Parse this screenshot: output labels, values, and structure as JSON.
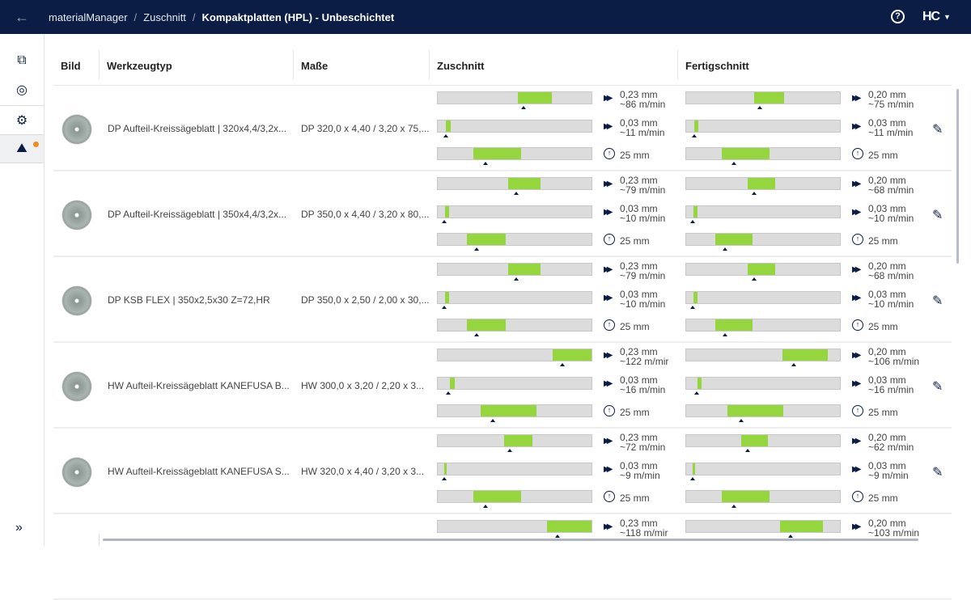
{
  "header": {
    "breadcrumb": [
      "materialManager",
      "Zuschnitt",
      "Kompaktplatten (HPL) - Unbeschichtet"
    ],
    "separator": "/",
    "help_icon": "?",
    "logo": "HC",
    "brand_color": "#0b1c45",
    "accent_color": "#95d63f",
    "notification_color": "#f28c1c"
  },
  "sidebar": {
    "items": [
      "monitor-stack-icon",
      "material-roll-icon",
      "gear-icon",
      "saw-machine-icon"
    ],
    "active_index": 3,
    "expand_icon": "»"
  },
  "table": {
    "columns": [
      "Bild",
      "Werkzeugtyp",
      "Maße",
      "Zuschnitt",
      "Fertigschnitt"
    ],
    "rows": [
      {
        "type": "DP Aufteil-Kreissägeblatt | 320x4,4/3,2x...",
        "dims": "DP 320,0 x 4,40 / 3,20 x 75,...",
        "zuschnitt": {
          "feed": {
            "range": [
              0.52,
              0.74
            ],
            "marker": 0.56,
            "l1": "0,23 mm",
            "l2": "~86 m/min"
          },
          "feed2": {
            "range": [
              0.05,
              0.085
            ],
            "marker": 0.05,
            "l1": "0,03 mm",
            "l2": "~11 m/min"
          },
          "overhang": {
            "range": [
              0.23,
              0.54
            ],
            "marker": 0.31,
            "l1": "25 mm"
          }
        },
        "fertigschnitt": {
          "feed": {
            "range": [
              0.44,
              0.635
            ],
            "marker": 0.48,
            "l1": "0,20 mm",
            "l2": "~75 m/min"
          },
          "feed2": {
            "range": [
              0.05,
              0.08
            ],
            "marker": 0.05,
            "l1": "0,03 mm",
            "l2": "~11 m/min"
          },
          "overhang": {
            "range": [
              0.23,
              0.54
            ],
            "marker": 0.31,
            "l1": "25 mm"
          }
        }
      },
      {
        "type": "DP Aufteil-Kreissägeblatt | 350x4,4/3,2x...",
        "dims": "DP 350,0 x 4,40 / 3,20 x 80,...",
        "zuschnitt": {
          "feed": {
            "range": [
              0.46,
              0.67
            ],
            "marker": 0.51,
            "l1": "0,23 mm",
            "l2": "~79 m/min"
          },
          "feed2": {
            "range": [
              0.047,
              0.073
            ],
            "marker": 0.04,
            "l1": "0,03 mm",
            "l2": "~10 m/min"
          },
          "overhang": {
            "range": [
              0.19,
              0.44
            ],
            "marker": 0.255,
            "l1": "25 mm"
          }
        },
        "fertigschnitt": {
          "feed": {
            "range": [
              0.4,
              0.58
            ],
            "marker": 0.44,
            "l1": "0,20 mm",
            "l2": "~68 m/min"
          },
          "feed2": {
            "range": [
              0.047,
              0.073
            ],
            "marker": 0.04,
            "l1": "0,03 mm",
            "l2": "~10 m/min"
          },
          "overhang": {
            "range": [
              0.19,
              0.43
            ],
            "marker": 0.25,
            "l1": "25 mm"
          }
        }
      },
      {
        "type": "DP KSB FLEX | 350x2,5x30 Z=72,HR",
        "dims": "DP 350,0 x 2,50 / 2,00 x 30,...",
        "zuschnitt": {
          "feed": {
            "range": [
              0.46,
              0.67
            ],
            "marker": 0.51,
            "l1": "0,23 mm",
            "l2": "~79 m/min"
          },
          "feed2": {
            "range": [
              0.047,
              0.073
            ],
            "marker": 0.04,
            "l1": "0,03 mm",
            "l2": "~10 m/min"
          },
          "overhang": {
            "range": [
              0.19,
              0.44
            ],
            "marker": 0.255,
            "l1": "25 mm"
          }
        },
        "fertigschnitt": {
          "feed": {
            "range": [
              0.4,
              0.58
            ],
            "marker": 0.44,
            "l1": "0,20 mm",
            "l2": "~68 m/min"
          },
          "feed2": {
            "range": [
              0.047,
              0.073
            ],
            "marker": 0.04,
            "l1": "0,03 mm",
            "l2": "~10 m/min"
          },
          "overhang": {
            "range": [
              0.19,
              0.43
            ],
            "marker": 0.25,
            "l1": "25 mm"
          }
        }
      },
      {
        "type": "HW Aufteil-Kreissägeblatt KANEFUSA B...",
        "dims": "HW 300,0 x 3,20 / 2,20 x 3...",
        "zuschnitt": {
          "feed": {
            "range": [
              0.745,
              1.0
            ],
            "marker": 0.81,
            "l1": "0,23 mm",
            "l2": "~122 m/mir"
          },
          "feed2": {
            "range": [
              0.08,
              0.11
            ],
            "marker": 0.07,
            "l1": "0,03 mm",
            "l2": "~16 m/min"
          },
          "overhang": {
            "range": [
              0.28,
              0.64
            ],
            "marker": 0.36,
            "l1": "25 mm"
          }
        },
        "fertigschnitt": {
          "feed": {
            "range": [
              0.625,
              0.92
            ],
            "marker": 0.7,
            "l1": "0,20 mm",
            "l2": "~106 m/min"
          },
          "feed2": {
            "range": [
              0.075,
              0.1
            ],
            "marker": 0.07,
            "l1": "0,03 mm",
            "l2": "~16 m/min"
          },
          "overhang": {
            "range": [
              0.27,
              0.63
            ],
            "marker": 0.36,
            "l1": "25 mm"
          }
        }
      },
      {
        "type": "HW Aufteil-Kreissägeblatt KANEFUSA S...",
        "dims": "HW 320,0 x 4,40 / 3,20 x 3...",
        "zuschnitt": {
          "feed": {
            "range": [
              0.43,
              0.615
            ],
            "marker": 0.47,
            "l1": "0,23 mm",
            "l2": "~72 m/min"
          },
          "feed2": {
            "range": [
              0.04,
              0.06
            ],
            "marker": 0.04,
            "l1": "0,03 mm",
            "l2": "~9 m/min"
          },
          "overhang": {
            "range": [
              0.23,
              0.54
            ],
            "marker": 0.31,
            "l1": "25 mm"
          }
        },
        "fertigschnitt": {
          "feed": {
            "range": [
              0.36,
              0.53
            ],
            "marker": 0.4,
            "l1": "0,20 mm",
            "l2": "~62 m/min"
          },
          "feed2": {
            "range": [
              0.04,
              0.06
            ],
            "marker": 0.04,
            "l1": "0,03 mm",
            "l2": "~9 m/min"
          },
          "overhang": {
            "range": [
              0.23,
              0.54
            ],
            "marker": 0.31,
            "l1": "25 mm"
          }
        }
      },
      {
        "type": "",
        "dims": "",
        "zuschnitt": {
          "feed": {
            "range": [
              0.71,
              1.0
            ],
            "marker": 0.78,
            "l1": "0,23 mm",
            "l2": "~118 m/mir"
          }
        },
        "fertigschnitt": {
          "feed": {
            "range": [
              0.61,
              0.89
            ],
            "marker": 0.68,
            "l1": "0,20 mm",
            "l2": "~103 m/min"
          }
        }
      }
    ]
  }
}
